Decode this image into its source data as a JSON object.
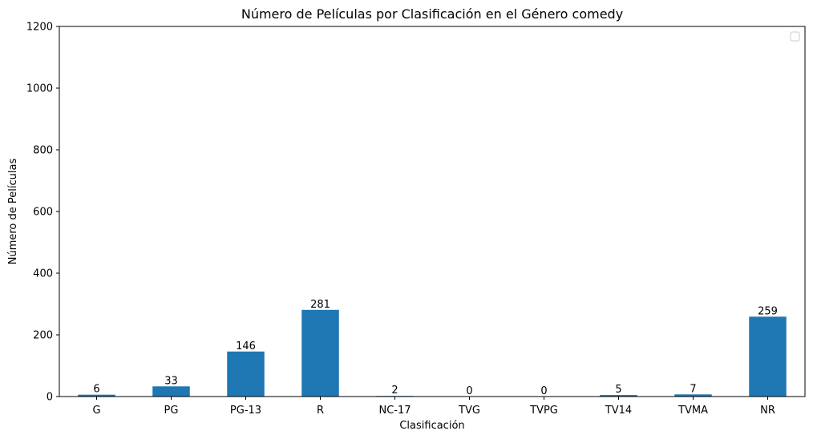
{
  "chart_data": {
    "type": "bar",
    "title": "Número de Películas por Clasificación en el Género comedy",
    "xlabel": "Clasificación",
    "ylabel": "Número de Películas",
    "categories": [
      "G",
      "PG",
      "PG-13",
      "R",
      "NC-17",
      "TVG",
      "TVPG",
      "TV14",
      "TVMA",
      "NR"
    ],
    "values": [
      6,
      33,
      146,
      281,
      2,
      0,
      0,
      5,
      7,
      259
    ],
    "data_labels": [
      "6",
      "33",
      "146",
      "281",
      "2",
      "0",
      "0",
      "5",
      "7",
      "259"
    ],
    "ylim": [
      0,
      1200
    ],
    "yticks": [
      0,
      200,
      400,
      600,
      800,
      1000,
      1200
    ],
    "ytick_labels": [
      "0",
      "200",
      "400",
      "600",
      "800",
      "1000",
      "1200"
    ],
    "grid": false,
    "legend": {
      "placement": "top-right",
      "entries": []
    },
    "bar_color": "#1f77b4"
  }
}
